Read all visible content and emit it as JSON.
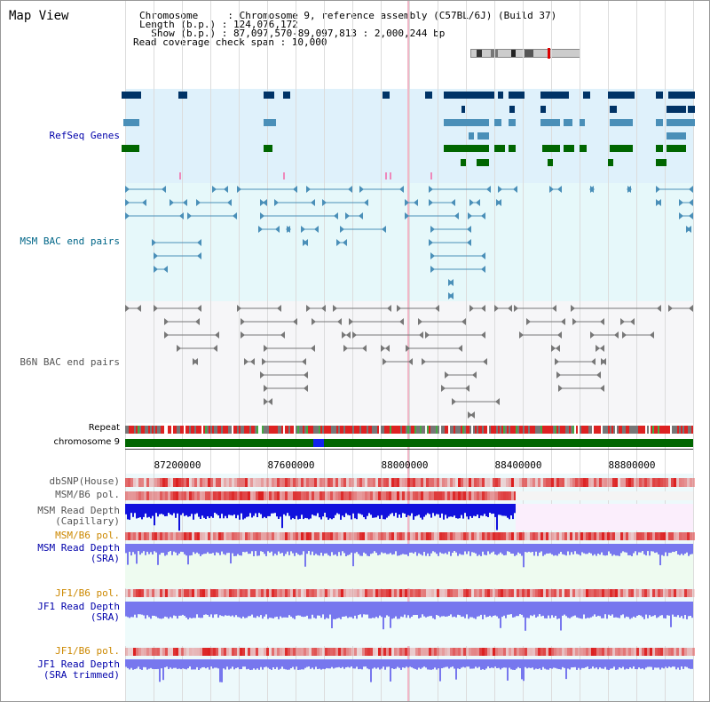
{
  "header": {
    "title": "Map View",
    "chromosome_line": "Chromosome     : Chromosome 9, reference assembly (C57BL/6J) (Build 37)",
    "length_line": "Length (b.p.) : 124,076,172",
    "show_line": "  Show (b.p.) : 87,097,570-89,097,813 : 2,000,244 bp",
    "coverage_line": "Read coverage check span : 10,000"
  },
  "tracks": {
    "refseq": {
      "label": "RefSeq Genes",
      "color": "#0000aa"
    },
    "msm_bac": {
      "label": "MSM BAC end pairs",
      "color": "#006688"
    },
    "b6n_bac": {
      "label": "B6N BAC end pairs",
      "color": "#555555"
    },
    "repeat": {
      "label": "Repeat"
    },
    "chromosome": {
      "label": "chromosome 9"
    },
    "dbsnp": {
      "label": "dbSNP(House)"
    },
    "msm_b6_pol": {
      "label": "MSM/B6 pol."
    },
    "msm_depth_cap": {
      "label": "MSM Read Depth\n(Capillary)"
    },
    "msm_b6_pol2": {
      "label": "MSM/B6 pol.",
      "color": "#cc8800"
    },
    "msm_depth_sra": {
      "label": "MSM Read Depth\n(SRA)",
      "color": "#0000aa"
    },
    "jf1_b6_pol": {
      "label": "JF1/B6 pol.",
      "color": "#cc8800"
    },
    "jf1_depth_sra": {
      "label": "JF1 Read Depth\n(SRA)",
      "color": "#0000aa"
    },
    "jf1_b6_pol2": {
      "label": "JF1/B6 pol.",
      "color": "#cc8800"
    },
    "jf1_depth_trim": {
      "label": "JF1 Read Depth\n(SRA trimmed)",
      "color": "#0000aa"
    }
  },
  "axis": {
    "ticks": [
      "87200000",
      "87600000",
      "88000000",
      "88400000",
      "88800000"
    ]
  },
  "colors": {
    "refseq_bg": "#dff1fb",
    "msm_bg": "#e6f8fa",
    "b6n_bg": "#f6f6f8",
    "gene_navy": "#003366",
    "gene_steel": "#4a8fb8",
    "gene_green": "#006600",
    "chrom_green": "#006600",
    "depth_blue": "#1111dd",
    "depth_violet": "#7777ee",
    "pol_red": "#ee3333"
  }
}
